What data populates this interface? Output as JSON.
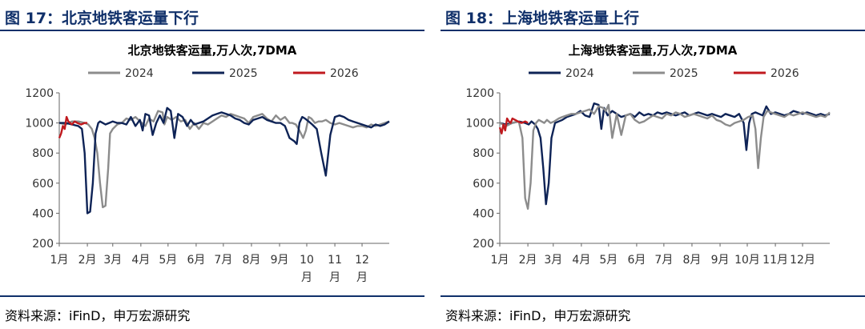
{
  "panels": [
    {
      "figure_title": "图 17：北京地铁客运量下行",
      "source": "资料来源：iFinD，申万宏源研究",
      "colors": {
        "2024": "#8c8c8c",
        "2025": "#0e2356",
        "2026": "#c0191e"
      },
      "chart_data": {
        "type": "line",
        "title": "北京地铁客运量,万人次,7DMA",
        "legend_order": [
          "2024",
          "2025",
          "2026"
        ],
        "legend_placement": "top",
        "ylim": [
          200,
          1200
        ],
        "yticks": [
          "1200",
          "1000",
          "800",
          "600",
          "400",
          "200"
        ],
        "xlim": [
          1,
          365
        ],
        "xticks": [
          {
            "day": 1,
            "label": [
              "1月"
            ]
          },
          {
            "day": 32,
            "label": [
              "2月"
            ]
          },
          {
            "day": 60,
            "label": [
              "3月"
            ]
          },
          {
            "day": 91,
            "label": [
              "4月"
            ]
          },
          {
            "day": 121,
            "label": [
              "5月"
            ]
          },
          {
            "day": 152,
            "label": [
              "6月"
            ]
          },
          {
            "day": 182,
            "label": [
              "7月"
            ]
          },
          {
            "day": 213,
            "label": [
              "8月"
            ]
          },
          {
            "day": 244,
            "label": [
              "9月"
            ]
          },
          {
            "day": 274,
            "label": [
              "10",
              "月"
            ]
          },
          {
            "day": 305,
            "label": [
              "11",
              "月"
            ]
          },
          {
            "day": 335,
            "label": [
              "12",
              "月"
            ]
          }
        ],
        "grid": false,
        "series": [
          {
            "name": "2024",
            "x": [
              1,
              8,
              15,
              22,
              29,
              33,
              37,
              40,
              43,
              46,
              49,
              52,
              55,
              57,
              60,
              65,
              70,
              75,
              80,
              85,
              92,
              96,
              100,
              105,
              110,
              115,
              117,
              120,
              125,
              130,
              135,
              140,
              145,
              150,
              155,
              160,
              165,
              170,
              175,
              180,
              185,
              190,
              195,
              200,
              205,
              210,
              215,
              220,
              225,
              230,
              235,
              240,
              245,
              250,
              255,
              258,
              262,
              266,
              270,
              273,
              276,
              279,
              283,
              287,
              291,
              295,
              300,
              305,
              310,
              315,
              320,
              325,
              330,
              335,
              340,
              345,
              350,
              355,
              360,
              365
            ],
            "y": [
              1000,
              990,
              1010,
              1010,
              1000,
              990,
              960,
              900,
              800,
              600,
              440,
              450,
              700,
              930,
              960,
              990,
              1000,
              1030,
              1020,
              1040,
              1000,
              980,
              1030,
              1010,
              1080,
              1070,
              990,
              1040,
              1020,
              1040,
              1010,
              1020,
              960,
              1000,
              960,
              1000,
              990,
              1010,
              1030,
              1050,
              1040,
              1060,
              1050,
              1040,
              1030,
              1000,
              1040,
              1050,
              1060,
              1030,
              1010,
              1050,
              1020,
              1040,
              1000,
              1000,
              990,
              950,
              900,
              950,
              1040,
              1030,
              1000,
              1010,
              1010,
              1020,
              1000,
              990,
              1000,
              990,
              980,
              970,
              980,
              980,
              970,
              990,
              980,
              990,
              1000,
              1010
            ]
          },
          {
            "name": "2025",
            "x": [
              1,
              8,
              15,
              22,
              26,
              29,
              32,
              35,
              38,
              41,
              44,
              46,
              49,
              52,
              56,
              60,
              65,
              70,
              75,
              80,
              85,
              90,
              93,
              96,
              100,
              104,
              108,
              112,
              116,
              120,
              124,
              128,
              132,
              137,
              142,
              146,
              150,
              155,
              160,
              165,
              170,
              175,
              180,
              185,
              190,
              195,
              200,
              205,
              210,
              215,
              220,
              225,
              230,
              235,
              240,
              245,
              250,
              255,
              260,
              263,
              266,
              269,
              272,
              276,
              280,
              285,
              290,
              295,
              300,
              305,
              310,
              315,
              320,
              325,
              330,
              335,
              340,
              345,
              350,
              355,
              360,
              365
            ],
            "y": [
              1000,
              1000,
              990,
              980,
              960,
              800,
              400,
              410,
              600,
              930,
              1000,
              1010,
              1000,
              990,
              1000,
              1010,
              1000,
              1000,
              990,
              1040,
              980,
              1020,
              950,
              1060,
              1050,
              920,
              1000,
              1050,
              1000,
              1100,
              1080,
              900,
              1060,
              1040,
              980,
              1020,
              990,
              1000,
              1010,
              1030,
              1050,
              1060,
              1070,
              1060,
              1050,
              1030,
              1020,
              1000,
              990,
              1020,
              1030,
              1040,
              1020,
              1010,
              1000,
              1000,
              980,
              900,
              880,
              860,
              1000,
              1040,
              1030,
              1010,
              990,
              960,
              800,
              650,
              920,
              1040,
              1050,
              1040,
              1020,
              1010,
              1000,
              990,
              980,
              970,
              990,
              980,
              990,
              1010
            ]
          },
          {
            "name": "2026",
            "x": [
              1,
              3,
              5,
              7,
              9,
              11,
              13,
              15,
              18,
              21,
              25,
              29,
              32
            ],
            "y": [
              900,
              930,
              980,
              960,
              1040,
              1010,
              1000,
              990,
              1010,
              1000,
              990,
              1000,
              1000
            ]
          }
        ]
      }
    },
    {
      "figure_title": "图 18：上海地铁客运量上行",
      "source": "资料来源：iFinD，申万宏源研究",
      "colors": {
        "2024": "#0e2356",
        "2025": "#8c8c8c",
        "2026": "#c0191e"
      },
      "chart_data": {
        "type": "line",
        "title": "上海地铁客运量,万人次,7DMA",
        "legend_order": [
          "2024",
          "2025",
          "2026"
        ],
        "legend_placement": "top",
        "ylim": [
          200,
          1200
        ],
        "yticks": [
          "1200",
          "1000",
          "800",
          "600",
          "400",
          "200"
        ],
        "xlim": [
          1,
          365
        ],
        "xticks": [
          {
            "day": 1,
            "label": [
              "1月"
            ]
          },
          {
            "day": 32,
            "label": [
              "2月"
            ]
          },
          {
            "day": 60,
            "label": [
              "3月"
            ]
          },
          {
            "day": 91,
            "label": [
              "4月"
            ]
          },
          {
            "day": 121,
            "label": [
              "5月"
            ]
          },
          {
            "day": 152,
            "label": [
              "6月"
            ]
          },
          {
            "day": 182,
            "label": [
              "7月"
            ]
          },
          {
            "day": 213,
            "label": [
              "8月"
            ]
          },
          {
            "day": 244,
            "label": [
              "9月"
            ]
          },
          {
            "day": 274,
            "label": [
              "10月"
            ]
          },
          {
            "day": 305,
            "label": [
              "11月"
            ]
          },
          {
            "day": 335,
            "label": [
              "12月"
            ]
          }
        ],
        "grid": false,
        "series": [
          {
            "name": "2024",
            "x": [
              1,
              8,
              15,
              22,
              29,
              33,
              36,
              40,
              43,
              46,
              49,
              52,
              55,
              58,
              62,
              66,
              70,
              75,
              80,
              85,
              90,
              95,
              100,
              105,
              110,
              113,
              116,
              120,
              125,
              130,
              135,
              140,
              145,
              150,
              155,
              160,
              165,
              170,
              175,
              180,
              185,
              190,
              195,
              200,
              205,
              210,
              215,
              220,
              225,
              230,
              235,
              240,
              245,
              250,
              255,
              260,
              265,
              270,
              273,
              276,
              279,
              283,
              287,
              291,
              295,
              300,
              305,
              310,
              315,
              320,
              325,
              330,
              335,
              340,
              345,
              350,
              355,
              360,
              365
            ],
            "y": [
              1000,
              990,
              1000,
              1010,
              1000,
              990,
              1010,
              990,
              960,
              900,
              700,
              460,
              600,
              900,
              1000,
              1010,
              1020,
              1040,
              1050,
              1060,
              1080,
              1050,
              1040,
              1130,
              1120,
              960,
              1100,
              1050,
              1080,
              1060,
              1040,
              1050,
              1060,
              1040,
              1070,
              1050,
              1060,
              1050,
              1070,
              1060,
              1070,
              1060,
              1050,
              1060,
              1070,
              1050,
              1060,
              1070,
              1060,
              1050,
              1060,
              1050,
              1040,
              1060,
              1050,
              1040,
              1060,
              1000,
              820,
              1000,
              1060,
              1070,
              1060,
              1050,
              1110,
              1060,
              1070,
              1060,
              1050,
              1060,
              1080,
              1070,
              1060,
              1070,
              1060,
              1050,
              1060,
              1050,
              1060
            ]
          },
          {
            "name": "2025",
            "x": [
              1,
              8,
              15,
              22,
              26,
              29,
              32,
              35,
              38,
              41,
              44,
              47,
              50,
              53,
              57,
              61,
              66,
              70,
              75,
              80,
              85,
              90,
              95,
              100,
              105,
              110,
              115,
              118,
              121,
              125,
              130,
              135,
              140,
              145,
              150,
              155,
              160,
              165,
              170,
              175,
              180,
              185,
              190,
              195,
              200,
              205,
              210,
              215,
              220,
              225,
              230,
              235,
              240,
              245,
              250,
              255,
              260,
              265,
              270,
              275,
              280,
              283,
              286,
              289,
              292,
              296,
              300,
              305,
              310,
              315,
              320,
              325,
              330,
              335,
              340,
              345,
              350,
              355,
              360,
              365
            ],
            "y": [
              1000,
              980,
              1000,
              1010,
              900,
              500,
              430,
              600,
              950,
              1000,
              1020,
              1010,
              1000,
              1020,
              1000,
              1010,
              1030,
              1040,
              1050,
              1060,
              1060,
              1070,
              1080,
              1090,
              1060,
              1110,
              1100,
              1080,
              1120,
              900,
              1060,
              920,
              1050,
              1060,
              1020,
              1000,
              1010,
              1030,
              1050,
              1040,
              1030,
              1060,
              1050,
              1070,
              1060,
              1040,
              1050,
              1060,
              1050,
              1040,
              1030,
              1050,
              1020,
              1010,
              990,
              980,
              1000,
              1010,
              1020,
              1040,
              1050,
              960,
              700,
              900,
              1040,
              1080,
              1070,
              1060,
              1050,
              1040,
              1060,
              1050,
              1060,
              1070,
              1060,
              1050,
              1040,
              1050,
              1040,
              1070
            ]
          },
          {
            "name": "2026",
            "x": [
              1,
              3,
              5,
              7,
              9,
              11,
              13,
              15,
              18,
              21,
              25,
              29,
              32
            ],
            "y": [
              970,
              930,
              990,
              950,
              1030,
              1010,
              1000,
              1030,
              1020,
              1010,
              1000,
              1010,
              1000
            ]
          }
        ]
      }
    }
  ]
}
